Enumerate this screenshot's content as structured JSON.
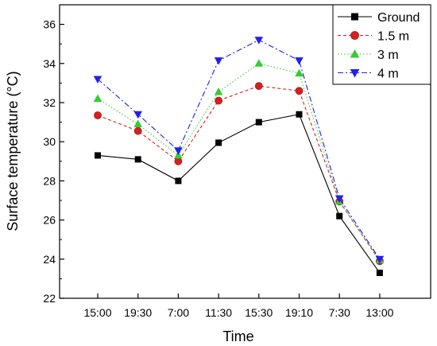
{
  "chart_data": {
    "type": "line",
    "xlabel": "Time",
    "ylabel": "Surface temperature (°C)",
    "categories": [
      "15:00",
      "19:30",
      "7:00",
      "11:30",
      "15:30",
      "19:10",
      "7:30",
      "13:00"
    ],
    "ylim": [
      22,
      37
    ],
    "yticks": [
      22,
      24,
      26,
      28,
      30,
      32,
      34,
      36
    ],
    "grid": false,
    "legend_position": "top-right",
    "series": [
      {
        "name": "Ground",
        "color": "#000000",
        "marker": "square",
        "line": "solid",
        "values": [
          29.3,
          29.1,
          28.0,
          29.95,
          31.0,
          31.4,
          26.2,
          23.3
        ]
      },
      {
        "name": "1.5 m",
        "color": "#d42020",
        "marker": "circle",
        "line": "dashed",
        "values": [
          31.35,
          30.55,
          29.0,
          32.1,
          32.85,
          32.6,
          26.95,
          23.9
        ]
      },
      {
        "name": "3 m",
        "color": "#33cc33",
        "marker": "triangle-up",
        "line": "dotted",
        "values": [
          32.2,
          30.9,
          29.3,
          32.55,
          34.0,
          33.5,
          26.95,
          23.95
        ]
      },
      {
        "name": "4 m",
        "color": "#2020ee",
        "marker": "triangle-down",
        "line": "dashdot",
        "values": [
          33.2,
          31.4,
          29.55,
          34.15,
          35.2,
          34.15,
          27.1,
          24.0
        ]
      }
    ]
  }
}
